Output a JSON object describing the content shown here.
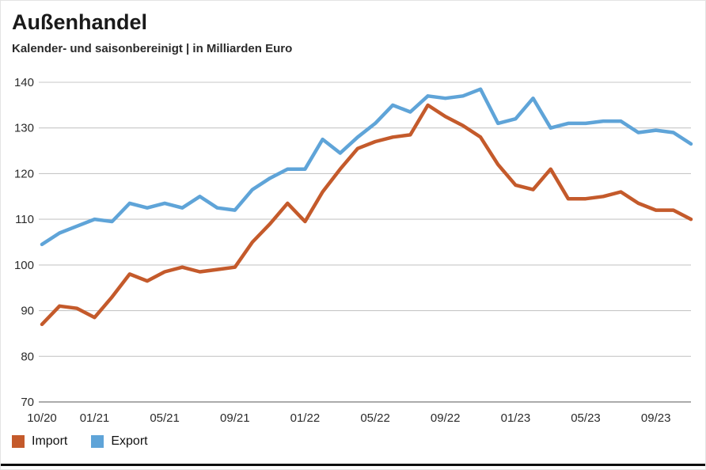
{
  "header": {
    "title": "Außenhandel",
    "subtitle": "Kalender- und saisonbereinigt | in Milliarden Euro"
  },
  "legend": [
    {
      "label": "Import",
      "color": "#c45a2b"
    },
    {
      "label": "Export",
      "color": "#5fa4d8"
    }
  ],
  "chart_data": {
    "type": "line",
    "title": "Außenhandel",
    "subtitle": "Kalender- und saisonbereinigt | in Milliarden Euro",
    "ylabel": "Milliarden Euro",
    "ylim": [
      70,
      140
    ],
    "yticks": [
      70,
      80,
      90,
      100,
      110,
      120,
      130,
      140
    ],
    "grid": true,
    "grid_color": "#c7c7c7",
    "axis_color": "#8f8f8f",
    "text_color": "#2b2b2b",
    "legend_position": "bottom",
    "x": [
      "10/20",
      "11/20",
      "12/20",
      "01/21",
      "02/21",
      "03/21",
      "04/21",
      "05/21",
      "06/21",
      "07/21",
      "08/21",
      "09/21",
      "10/21",
      "11/21",
      "12/21",
      "01/22",
      "02/22",
      "03/22",
      "04/22",
      "05/22",
      "06/22",
      "07/22",
      "08/22",
      "09/22",
      "10/22",
      "11/22",
      "12/22",
      "01/23",
      "02/23",
      "03/23",
      "04/23",
      "05/23",
      "06/23",
      "07/23",
      "08/23",
      "09/23",
      "10/23",
      "11/23"
    ],
    "xtick_indices": [
      0,
      3,
      7,
      11,
      15,
      19,
      23,
      27,
      31,
      35
    ],
    "xtick_labels": [
      "10/20",
      "01/21",
      "05/21",
      "09/21",
      "01/22",
      "05/22",
      "09/22",
      "01/23",
      "05/23",
      "09/23"
    ],
    "series": [
      {
        "name": "Import",
        "color": "#c45a2b",
        "values": [
          87,
          91,
          90.5,
          88.5,
          93,
          98,
          96.5,
          98.5,
          99.5,
          98.5,
          99,
          99.5,
          105,
          109,
          113.5,
          109.5,
          116,
          121,
          125.5,
          127,
          128,
          128.5,
          135,
          132.5,
          130.5,
          128,
          122,
          117.5,
          116.5,
          121,
          114.5,
          114.5,
          115,
          116,
          113.5,
          112,
          112,
          110
        ]
      },
      {
        "name": "Export",
        "color": "#5fa4d8",
        "values": [
          104.5,
          107,
          108.5,
          110,
          109.5,
          113.5,
          112.5,
          113.5,
          112.5,
          115,
          112.5,
          112,
          116.5,
          119,
          121,
          121,
          127.5,
          124.5,
          128,
          131,
          135,
          133.5,
          137,
          136.5,
          137,
          138.5,
          131,
          132,
          136.5,
          130,
          131,
          131,
          131.5,
          131.5,
          129,
          129.5,
          129,
          126.5
        ]
      }
    ]
  }
}
